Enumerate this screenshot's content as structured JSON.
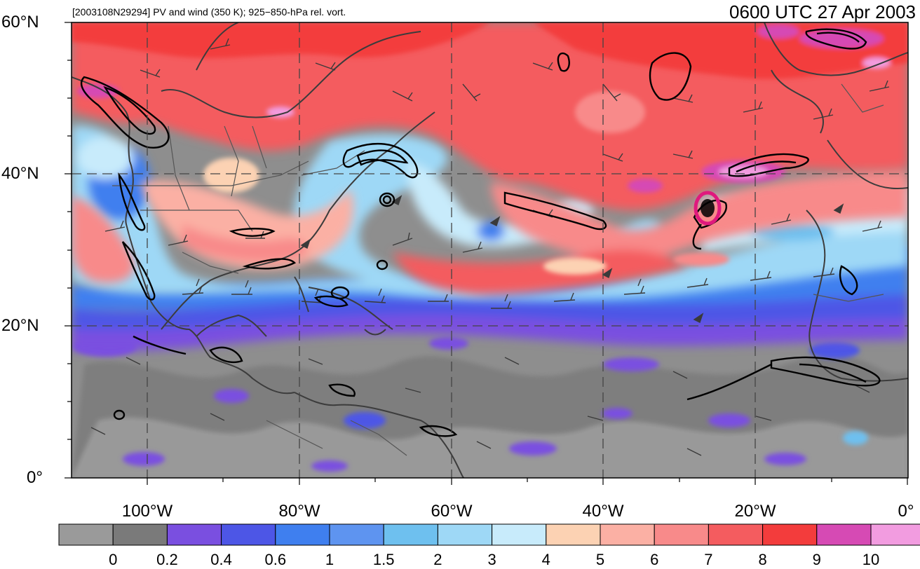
{
  "title_left": "[2003108N29294] PV and wind (350 K); 925−850-hPa rel. vort.",
  "title_right": "0600 UTC 27 Apr 2003",
  "map": {
    "domain": {
      "lon_min": -110,
      "lon_max": 0,
      "lat_min": 0,
      "lat_max": 60
    },
    "lat_ticks": [
      {
        "value": 60,
        "label": "60°N"
      },
      {
        "value": 40,
        "label": "40°N"
      },
      {
        "value": 20,
        "label": "20°N"
      },
      {
        "value": 0,
        "label": "0°"
      }
    ],
    "lon_ticks": [
      {
        "value": -100,
        "label": "100°W"
      },
      {
        "value": -80,
        "label": "80°W"
      },
      {
        "value": -60,
        "label": "60°W"
      },
      {
        "value": -40,
        "label": "40°W"
      },
      {
        "value": -20,
        "label": "20°W"
      },
      {
        "value": 0,
        "label": "0°"
      }
    ],
    "gridlines": "dashed",
    "storm_center": {
      "lon": -26,
      "lat": 35.5,
      "marker_color": "#e0197d"
    }
  },
  "colorbar": {
    "labels": [
      "0",
      "0.2",
      "0.4",
      "0.6",
      "1",
      "1.5",
      "2",
      "3",
      "4",
      "5",
      "6",
      "7",
      "8",
      "9",
      "10"
    ],
    "colors": [
      "#9a9a9a",
      "#7a7a7a",
      "#7a4fe0",
      "#4d56e6",
      "#3f7fef",
      "#5e94f0",
      "#6ec0ef",
      "#9ed8f6",
      "#c8ebfb",
      "#fcd2b3",
      "#fbb0a4",
      "#f88a8a",
      "#f45c5f",
      "#f33c3c",
      "#d64ab4",
      "#f29ce0"
    ]
  }
}
